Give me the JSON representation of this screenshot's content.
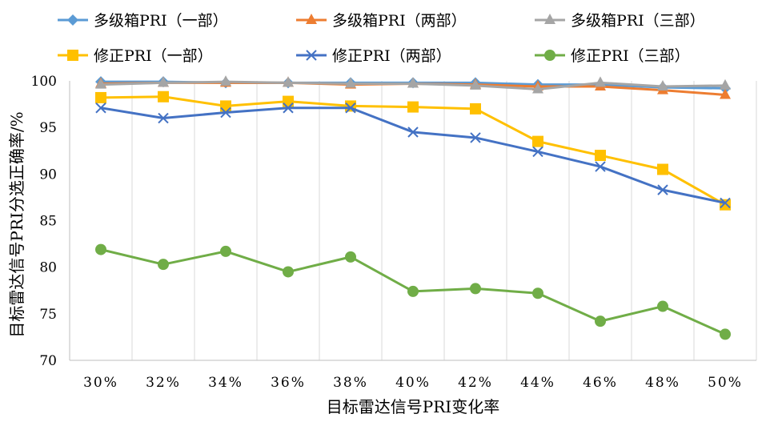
{
  "chart_data": {
    "type": "line",
    "title": "",
    "xlabel": "目标雷达信号PRI变化率",
    "ylabel": "目标雷达信号PRI分选正确率/%",
    "categories": [
      "30%",
      "32%",
      "34%",
      "36%",
      "38%",
      "40%",
      "42%",
      "44%",
      "46%",
      "48%",
      "50%"
    ],
    "ylim": [
      70,
      100
    ],
    "yticks": [
      70,
      75,
      80,
      85,
      90,
      95,
      100
    ],
    "grid": "vertical",
    "legend_position": "top",
    "series": [
      {
        "name": "多级箱PRI（一部）",
        "color": "#5B9BD5",
        "marker": "diamond",
        "values": [
          99.9,
          99.9,
          99.8,
          99.8,
          99.8,
          99.8,
          99.8,
          99.6,
          99.6,
          99.3,
          99.2
        ]
      },
      {
        "name": "多级箱PRI（两部）",
        "color": "#ED7D31",
        "marker": "triangle",
        "values": [
          99.7,
          99.8,
          99.8,
          99.8,
          99.6,
          99.7,
          99.6,
          99.4,
          99.4,
          99.0,
          98.5
        ]
      },
      {
        "name": "多级箱PRI（三部）",
        "color": "#A5A5A5",
        "marker": "triangle",
        "values": [
          99.6,
          99.8,
          99.9,
          99.8,
          99.7,
          99.7,
          99.5,
          99.1,
          99.8,
          99.4,
          99.5
        ]
      },
      {
        "name": "修正PRI（一部）",
        "color": "#FFC000",
        "marker": "square",
        "values": [
          98.2,
          98.3,
          97.3,
          97.8,
          97.3,
          97.2,
          97.0,
          93.5,
          92.0,
          90.5,
          86.7
        ]
      },
      {
        "name": "修正PRI（两部）",
        "color": "#4472C4",
        "marker": "x",
        "values": [
          97.1,
          96.0,
          96.6,
          97.1,
          97.1,
          94.5,
          93.9,
          92.4,
          90.8,
          88.3,
          86.9
        ]
      },
      {
        "name": "修正PRI（三部）",
        "color": "#70AD47",
        "marker": "circle",
        "values": [
          81.9,
          80.3,
          81.7,
          79.5,
          81.1,
          77.4,
          77.7,
          77.2,
          74.2,
          75.8,
          72.8
        ]
      }
    ]
  }
}
